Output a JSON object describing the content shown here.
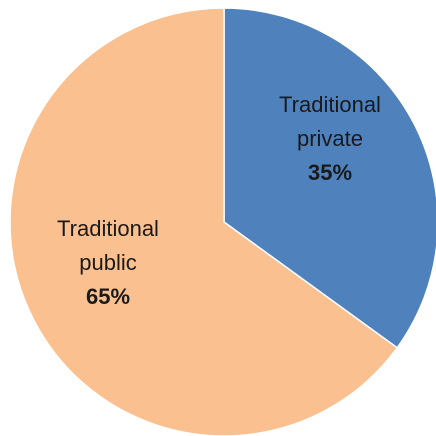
{
  "chart_data": {
    "type": "pie",
    "slices": [
      {
        "name_lines": [
          "Traditional",
          "private"
        ],
        "value": 35,
        "value_label": "35%",
        "color": "#4f81bd"
      },
      {
        "name_lines": [
          "Traditional",
          "public"
        ],
        "value": 65,
        "value_label": "65%",
        "color": "#fac090"
      }
    ],
    "start_angle_deg": 0,
    "direction": "clockwise",
    "title": "",
    "legend": "none"
  }
}
